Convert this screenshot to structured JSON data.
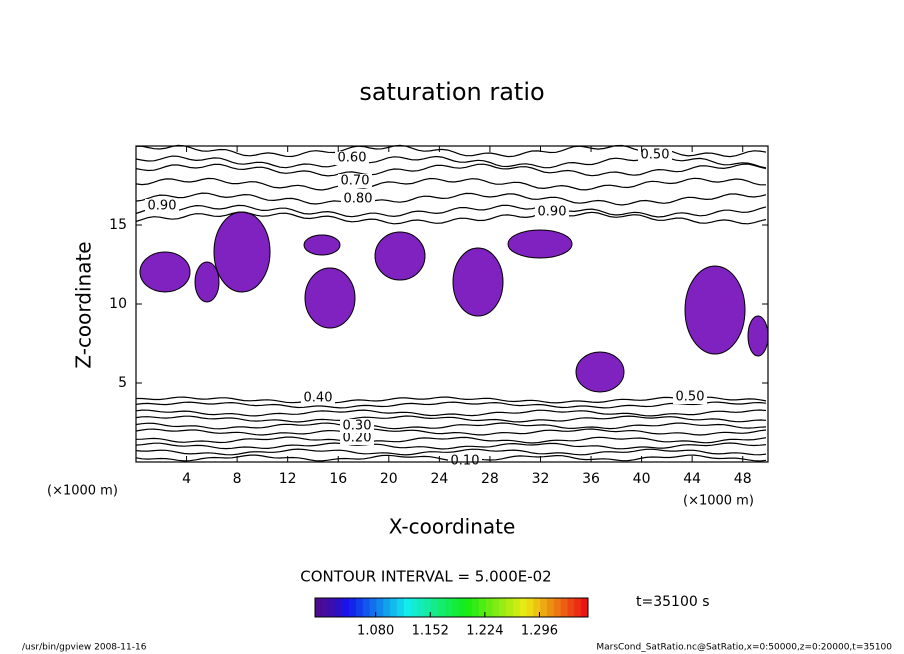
{
  "chart_data": {
    "type": "contour",
    "title": "saturation ratio",
    "xlabel": "X-coordinate",
    "ylabel": "Z-coordinate",
    "x_unit": "(×1000 m)",
    "y_unit": "(×1000 m)",
    "xlim": [
      0,
      50
    ],
    "ylim": [
      0,
      20
    ],
    "xticks": [
      4,
      8,
      12,
      16,
      20,
      24,
      28,
      32,
      36,
      40,
      44,
      48
    ],
    "yticks": [
      5,
      10,
      15
    ],
    "levels": [
      {
        "value": 0.1,
        "label": "0.10"
      },
      {
        "value": 0.2,
        "label": "0.20"
      },
      {
        "value": 0.3,
        "label": "0.30"
      },
      {
        "value": 0.4,
        "label": "0.40"
      },
      {
        "value": 0.5,
        "label": "0.50"
      },
      {
        "value": 0.6,
        "label": "0.60"
      },
      {
        "value": 0.7,
        "label": "0.70"
      },
      {
        "value": 0.8,
        "label": "0.80"
      },
      {
        "value": 0.9,
        "label": "0.90"
      }
    ],
    "contour_interval": "CONTOUR INTERVAL = 5.000E-02",
    "shade_color": "#7f22c0",
    "clim": [
      1.0,
      1.36
    ],
    "colorbar_ticks": [
      {
        "value": 1.08,
        "label": "1.080"
      },
      {
        "value": 1.152,
        "label": "1.152"
      },
      {
        "value": 1.224,
        "label": "1.224"
      },
      {
        "value": 1.296,
        "label": "1.296"
      }
    ],
    "time_label": "t=35100 s",
    "footer_left": "/usr/bin/gpview   2008-11-16",
    "footer_right": "MarsCond_SatRatio.nc@SatRatio,x=0:50000,z=0:20000,t=35100"
  }
}
